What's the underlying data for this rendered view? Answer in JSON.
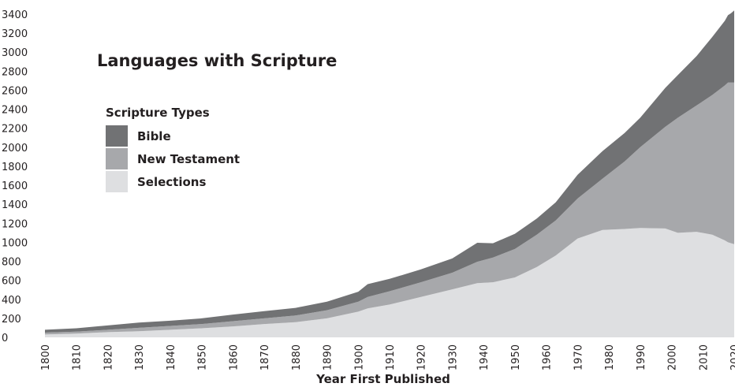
{
  "chart_data": {
    "type": "area",
    "stacked": true,
    "title": "Languages with Scripture",
    "xlabel": "Year First Published",
    "ylabel": "",
    "xlim": [
      1800,
      2020
    ],
    "ylim": [
      0,
      3400
    ],
    "yticks": [
      "0",
      "200",
      "400",
      "600",
      "800",
      "1000",
      "1200",
      "1400",
      "1600",
      "1800",
      "2000",
      "2200",
      "2400",
      "2600",
      "2800",
      "3000",
      "3200",
      "3400"
    ],
    "xticks": [
      "1800",
      "1810",
      "1820",
      "1830",
      "1840",
      "1850",
      "1860",
      "1870",
      "1880",
      "1890",
      "1900",
      "1910",
      "1920",
      "1930",
      "1940",
      "1950",
      "1960",
      "1970",
      "1980",
      "1990",
      "2000",
      "2010",
      "2020"
    ],
    "legend": {
      "title": "Scripture Types",
      "placement": "upper-left"
    },
    "x": [
      1800,
      1810,
      1820,
      1830,
      1840,
      1850,
      1860,
      1870,
      1880,
      1890,
      1900,
      1903,
      1910,
      1920,
      1930,
      1938,
      1943,
      1950,
      1957,
      1963,
      1970,
      1978,
      1985,
      1990,
      1998,
      2002,
      2008,
      2013,
      2017,
      2018,
      2019,
      2020
    ],
    "series": [
      {
        "name": "Selections",
        "color": "#dedfe1",
        "values": [
          30,
          40,
          55,
          65,
          80,
          95,
          115,
          140,
          160,
          200,
          270,
          305,
          345,
          425,
          505,
          570,
          580,
          630,
          740,
          860,
          1040,
          1130,
          1140,
          1150,
          1145,
          1100,
          1110,
          1080,
          1020,
          1000,
          990,
          980
        ]
      },
      {
        "name": "New Testament",
        "color": "#a7a8ab",
        "values": [
          20,
          20,
          25,
          35,
          40,
          45,
          55,
          60,
          70,
          85,
          105,
          120,
          140,
          155,
          175,
          225,
          260,
          300,
          340,
          370,
          420,
          540,
          710,
          850,
          1070,
          1210,
          1330,
          1470,
          1630,
          1680,
          1690,
          1700
        ]
      },
      {
        "name": "Bible",
        "color": "#717274",
        "values": [
          30,
          35,
          45,
          55,
          55,
          60,
          70,
          75,
          80,
          90,
          105,
          135,
          130,
          135,
          150,
          200,
          150,
          160,
          170,
          190,
          250,
          290,
          300,
          310,
          410,
          450,
          520,
          610,
          680,
          710,
          730,
          760
        ]
      }
    ]
  }
}
